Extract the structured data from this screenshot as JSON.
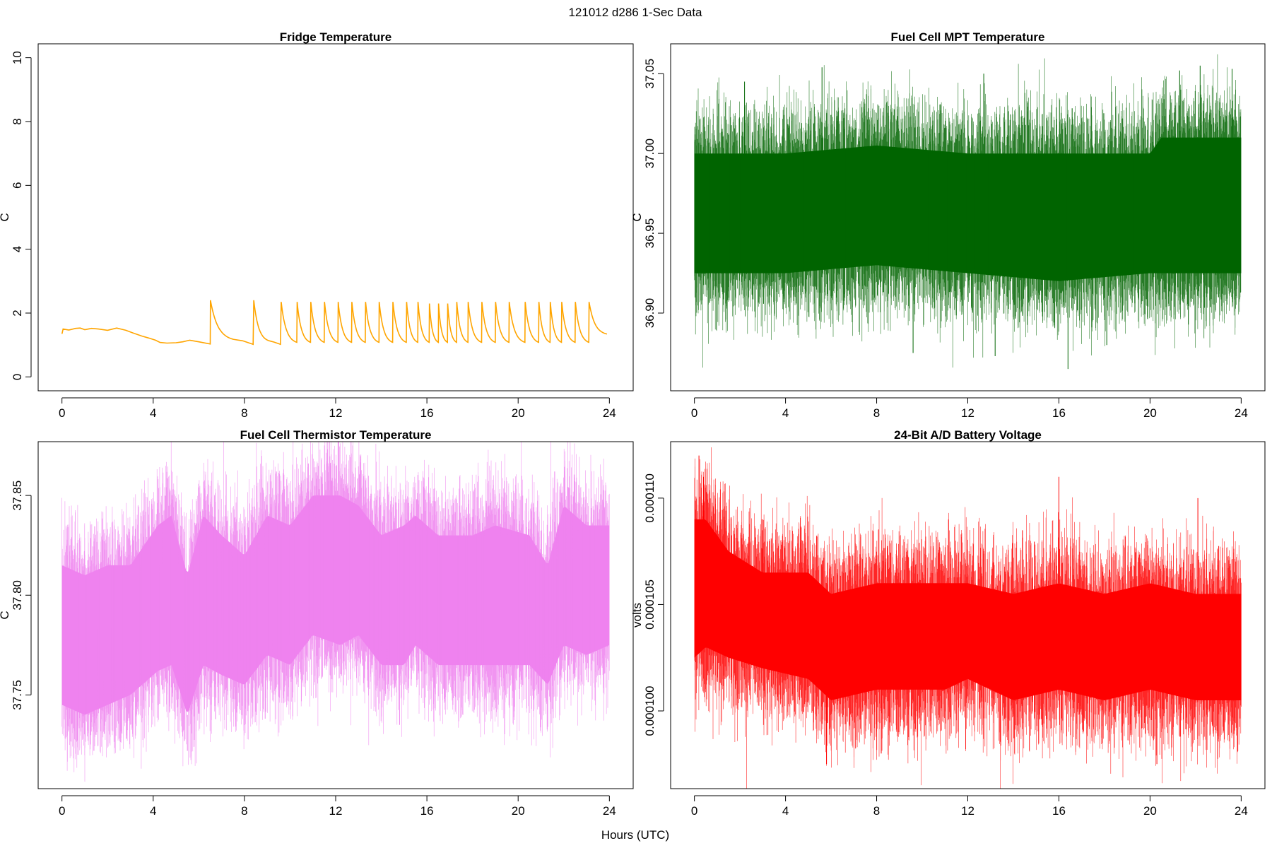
{
  "figure": {
    "suptitle": "121012   d286   1-Sec Data",
    "xlabel": "Hours (UTC)"
  },
  "chart_data": [
    {
      "type": "line",
      "title": "Fridge Temperature",
      "ylabel": "C",
      "color": "#FFA500",
      "xlim": [
        0,
        24
      ],
      "ylim": [
        0,
        10
      ],
      "xticks": [
        "0",
        "4",
        "8",
        "12",
        "16",
        "20",
        "24"
      ],
      "yticks": [
        "0",
        "2",
        "4",
        "6",
        "8",
        "10"
      ],
      "yticks_values": [
        0,
        2,
        4,
        6,
        8,
        10
      ],
      "baseline": [
        [
          0,
          1.35
        ],
        [
          0.05,
          1.5
        ],
        [
          0.3,
          1.47
        ],
        [
          0.6,
          1.52
        ],
        [
          0.8,
          1.53
        ],
        [
          1.0,
          1.48
        ],
        [
          1.3,
          1.52
        ],
        [
          1.6,
          1.5
        ],
        [
          2.0,
          1.46
        ],
        [
          2.4,
          1.53
        ],
        [
          2.8,
          1.46
        ],
        [
          3.1,
          1.38
        ],
        [
          3.5,
          1.28
        ],
        [
          3.8,
          1.22
        ],
        [
          4.1,
          1.15
        ],
        [
          4.3,
          1.08
        ],
        [
          4.6,
          1.06
        ],
        [
          5.0,
          1.07
        ],
        [
          5.3,
          1.1
        ],
        [
          5.6,
          1.15
        ],
        [
          6.0,
          1.1
        ],
        [
          6.5,
          1.03
        ]
      ],
      "cycles": [
        {
          "start": 6.5,
          "end": 8.4,
          "peak": 2.4,
          "low": 1.02,
          "shoulder": 1.12
        },
        {
          "start": 8.4,
          "end": 9.6,
          "peak": 2.4,
          "low": 1.02,
          "shoulder": 1.08
        },
        {
          "start": 9.6,
          "end": 10.3,
          "peak": 2.35,
          "low": 1.03
        },
        {
          "start": 10.3,
          "end": 10.9,
          "peak": 2.35,
          "low": 1.03
        },
        {
          "start": 10.9,
          "end": 11.5,
          "peak": 2.35,
          "low": 1.03
        },
        {
          "start": 11.5,
          "end": 12.1,
          "peak": 2.35,
          "low": 1.03
        },
        {
          "start": 12.1,
          "end": 12.7,
          "peak": 2.35,
          "low": 1.03
        },
        {
          "start": 12.7,
          "end": 13.3,
          "peak": 2.35,
          "low": 1.03
        },
        {
          "start": 13.3,
          "end": 13.9,
          "peak": 2.35,
          "low": 1.03
        },
        {
          "start": 13.9,
          "end": 14.5,
          "peak": 2.35,
          "low": 1.03
        },
        {
          "start": 14.5,
          "end": 15.1,
          "peak": 2.35,
          "low": 1.03
        },
        {
          "start": 15.1,
          "end": 15.6,
          "peak": 2.35,
          "low": 1.03
        },
        {
          "start": 15.6,
          "end": 16.1,
          "peak": 2.35,
          "low": 1.03
        },
        {
          "start": 16.1,
          "end": 16.5,
          "peak": 2.3,
          "low": 1.03
        },
        {
          "start": 16.5,
          "end": 16.9,
          "peak": 2.3,
          "low": 1.03
        },
        {
          "start": 16.9,
          "end": 17.3,
          "peak": 2.3,
          "low": 1.03
        },
        {
          "start": 17.3,
          "end": 17.8,
          "peak": 2.35,
          "low": 1.03
        },
        {
          "start": 17.8,
          "end": 18.4,
          "peak": 2.35,
          "low": 1.03
        },
        {
          "start": 18.4,
          "end": 19.0,
          "peak": 2.35,
          "low": 1.03
        },
        {
          "start": 19.0,
          "end": 19.6,
          "peak": 2.35,
          "low": 1.03
        },
        {
          "start": 19.6,
          "end": 20.3,
          "peak": 2.35,
          "low": 1.03
        },
        {
          "start": 20.3,
          "end": 20.9,
          "peak": 2.35,
          "low": 1.03
        },
        {
          "start": 20.9,
          "end": 21.4,
          "peak": 2.35,
          "low": 1.03
        },
        {
          "start": 21.4,
          "end": 21.9,
          "peak": 2.35,
          "low": 1.03
        },
        {
          "start": 21.9,
          "end": 22.5,
          "peak": 2.35,
          "low": 1.03
        },
        {
          "start": 22.5,
          "end": 23.1,
          "peak": 2.35,
          "low": 1.03
        },
        {
          "start": 23.1,
          "end": 23.9,
          "peak": 2.35,
          "low": 1.3
        }
      ]
    },
    {
      "type": "line",
      "title": "Fuel Cell MPT Temperature",
      "ylabel": "C",
      "color": "#006400",
      "xlim": [
        0,
        24
      ],
      "ylim": [
        36.86,
        37.06
      ],
      "xticks": [
        "0",
        "4",
        "8",
        "12",
        "16",
        "20",
        "24"
      ],
      "yticks": [
        "36.90",
        "36.95",
        "37.00",
        "37.05"
      ],
      "yticks_values": [
        36.9,
        36.95,
        37.0,
        37.05
      ],
      "envelope": [
        {
          "x": 0,
          "lo": 36.925,
          "hi": 37.0
        },
        {
          "x": 4,
          "lo": 36.925,
          "hi": 37.0
        },
        {
          "x": 8,
          "lo": 36.93,
          "hi": 37.005
        },
        {
          "x": 12,
          "lo": 36.925,
          "hi": 37.0
        },
        {
          "x": 16,
          "lo": 36.92,
          "hi": 37.0
        },
        {
          "x": 20,
          "lo": 36.925,
          "hi": 37.0
        },
        {
          "x": 20.5,
          "lo": 36.925,
          "hi": 37.01
        },
        {
          "x": 24,
          "lo": 36.925,
          "hi": 37.01
        }
      ],
      "noise": 0.035,
      "spikes": [
        [
          5.6,
          37.054
        ],
        [
          13.2,
          36.873
        ],
        [
          16.4,
          36.865
        ],
        [
          9.6,
          36.875
        ],
        [
          21.3,
          37.052
        ],
        [
          22.2,
          37.055
        ],
        [
          23.6,
          37.053
        ],
        [
          12.7,
          37.05
        ],
        [
          2.2,
          37.045
        ],
        [
          18.1,
          36.88
        ]
      ]
    },
    {
      "type": "line",
      "title": "Fuel Cell Thermistor Temperature",
      "ylabel": "C",
      "color": "#EE82EE",
      "xlim": [
        0,
        24
      ],
      "ylim": [
        37.71,
        37.87
      ],
      "xticks": [
        "0",
        "4",
        "8",
        "12",
        "16",
        "20",
        "24"
      ],
      "yticks": [
        "37.75",
        "37.80",
        "37.85"
      ],
      "yticks_values": [
        37.75,
        37.8,
        37.85
      ],
      "envelope": [
        {
          "x": 0,
          "lo": 37.745,
          "hi": 37.815
        },
        {
          "x": 1,
          "lo": 37.74,
          "hi": 37.81
        },
        {
          "x": 2,
          "lo": 37.745,
          "hi": 37.815
        },
        {
          "x": 3,
          "lo": 37.75,
          "hi": 37.815
        },
        {
          "x": 4.2,
          "lo": 37.762,
          "hi": 37.835
        },
        {
          "x": 4.8,
          "lo": 37.765,
          "hi": 37.84
        },
        {
          "x": 5.5,
          "lo": 37.74,
          "hi": 37.81
        },
        {
          "x": 6.2,
          "lo": 37.765,
          "hi": 37.84
        },
        {
          "x": 7,
          "lo": 37.76,
          "hi": 37.83
        },
        {
          "x": 8,
          "lo": 37.755,
          "hi": 37.82
        },
        {
          "x": 9,
          "lo": 37.77,
          "hi": 37.84
        },
        {
          "x": 10,
          "lo": 37.765,
          "hi": 37.835
        },
        {
          "x": 11,
          "lo": 37.78,
          "hi": 37.85
        },
        {
          "x": 12.2,
          "lo": 37.775,
          "hi": 37.85
        },
        {
          "x": 13,
          "lo": 37.78,
          "hi": 37.845
        },
        {
          "x": 14,
          "lo": 37.765,
          "hi": 37.83
        },
        {
          "x": 15,
          "lo": 37.765,
          "hi": 37.835
        },
        {
          "x": 15.5,
          "lo": 37.775,
          "hi": 37.84
        },
        {
          "x": 16.5,
          "lo": 37.765,
          "hi": 37.83
        },
        {
          "x": 18,
          "lo": 37.765,
          "hi": 37.83
        },
        {
          "x": 19,
          "lo": 37.765,
          "hi": 37.835
        },
        {
          "x": 20.5,
          "lo": 37.765,
          "hi": 37.83
        },
        {
          "x": 21.3,
          "lo": 37.755,
          "hi": 37.815
        },
        {
          "x": 22,
          "lo": 37.775,
          "hi": 37.845
        },
        {
          "x": 23,
          "lo": 37.77,
          "hi": 37.835
        },
        {
          "x": 24,
          "lo": 37.775,
          "hi": 37.835
        }
      ],
      "noise": 0.03,
      "spikes": [
        [
          10.8,
          37.866
        ],
        [
          11.8,
          37.865
        ],
        [
          12.4,
          37.864
        ],
        [
          9.4,
          37.862
        ],
        [
          5.5,
          37.722
        ],
        [
          0.7,
          37.72
        ],
        [
          1.4,
          37.722
        ],
        [
          14.8,
          37.735
        ],
        [
          21.6,
          37.862
        ]
      ]
    },
    {
      "type": "line",
      "title": "24-Bit A/D Battery Voltage",
      "ylabel": "volts",
      "color": "#FF0000",
      "xlim": [
        0,
        24
      ],
      "ylim": [
        9.7e-05,
        0.000112
      ],
      "xticks": [
        "0",
        "4",
        "8",
        "12",
        "16",
        "20",
        "24"
      ],
      "yticks": [
        "0.000100",
        "0.000105",
        "0.000110"
      ],
      "yticks_values": [
        0.0001,
        0.000105,
        0.00011
      ],
      "envelope": [
        {
          "x": 0,
          "lo": 0.0001025,
          "hi": 0.000109
        },
        {
          "x": 0.5,
          "lo": 0.000103,
          "hi": 0.000109
        },
        {
          "x": 1.5,
          "lo": 0.0001025,
          "hi": 0.0001075
        },
        {
          "x": 3,
          "lo": 0.000102,
          "hi": 0.0001065
        },
        {
          "x": 5,
          "lo": 0.0001015,
          "hi": 0.0001065
        },
        {
          "x": 6,
          "lo": 0.0001005,
          "hi": 0.0001055
        },
        {
          "x": 8,
          "lo": 0.000101,
          "hi": 0.000106
        },
        {
          "x": 11,
          "lo": 0.000101,
          "hi": 0.000106
        },
        {
          "x": 12,
          "lo": 0.0001015,
          "hi": 0.000106
        },
        {
          "x": 14,
          "lo": 0.0001005,
          "hi": 0.0001055
        },
        {
          "x": 16,
          "lo": 0.000101,
          "hi": 0.000106
        },
        {
          "x": 18,
          "lo": 0.0001005,
          "hi": 0.0001055
        },
        {
          "x": 20,
          "lo": 0.000101,
          "hi": 0.000106
        },
        {
          "x": 22,
          "lo": 0.0001005,
          "hi": 0.0001055
        },
        {
          "x": 24,
          "lo": 0.0001005,
          "hi": 0.0001055
        }
      ],
      "noise": 2.8e-06,
      "spikes": [
        [
          0.2,
          0.000112
        ],
        [
          0.4,
          0.000111
        ],
        [
          16.0,
          0.000111
        ],
        [
          5.8,
          9.75e-05
        ],
        [
          20.3,
          9.75e-05
        ],
        [
          8.2,
          9.8e-05
        ],
        [
          22.1,
          0.00011
        ],
        [
          3.0,
          0.000109
        ]
      ]
    }
  ]
}
